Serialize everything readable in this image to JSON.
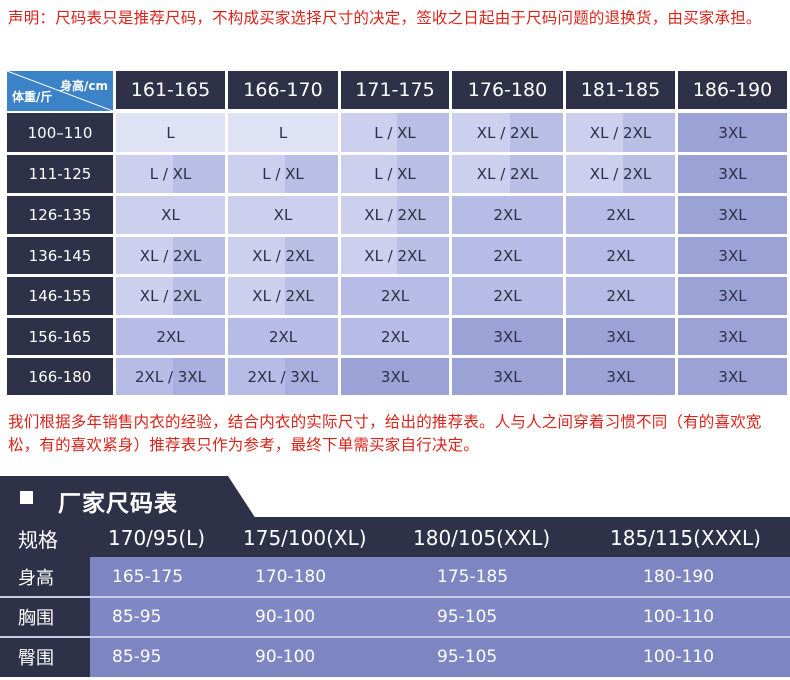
{
  "top_notice": "声明：尺码表只是推荐尺码，不构成买家选择尺寸的决定，签收之日起由于尺码问题的退换货，由买家承担。",
  "grid": {
    "corner_height_label": "身高/cm",
    "corner_weight_label": "体重/斤",
    "height_ranges": [
      "161-165",
      "166-170",
      "171-175",
      "176-180",
      "181-185",
      "186-190"
    ],
    "weight_ranges": [
      "100–110",
      "111-125",
      "126-135",
      "136-145",
      "146-155",
      "156-165",
      "166-180"
    ],
    "rows": [
      [
        "L",
        "L",
        "L / XL",
        "XL / 2XL",
        "XL / 2XL",
        "3XL"
      ],
      [
        "L / XL",
        "L / XL",
        "L / XL",
        "XL / 2XL",
        "XL / 2XL",
        "3XL"
      ],
      [
        "XL",
        "XL",
        "XL / 2XL",
        "2XL",
        "2XL",
        "3XL"
      ],
      [
        "XL / 2XL",
        "XL / 2XL",
        "XL / 2XL",
        "2XL",
        "2XL",
        "3XL"
      ],
      [
        "XL / 2XL",
        "XL / 2XL",
        "2XL",
        "2XL",
        "2XL",
        "3XL"
      ],
      [
        "2XL",
        "2XL",
        "2XL",
        "3XL",
        "3XL",
        "3XL"
      ],
      [
        "2XL / 3XL",
        "2XL / 3XL",
        "3XL",
        "3XL",
        "3XL",
        "3XL"
      ]
    ],
    "colors": {
      "header_bg": "#2e3148",
      "corner_bg": "#3c82c6",
      "L": "#dfe1f5",
      "XL": "#ccd0ee",
      "2XL": "#b6bce5",
      "3XL": "#9ba2d6"
    }
  },
  "mid_notice": "我们根据多年销售内衣的经验，结合内衣的实际尺寸，给出的推荐表。人与人之间穿着习惯不同（有的喜欢宽松，有的喜欢紧身）推荐表只作为参考，最终下单需买家自行决定。",
  "factory": {
    "title": "厂家尺码表",
    "spec_label": "规格",
    "specs": [
      "170/95(L)",
      "175/100(XL)",
      "180/105(XXL)",
      "185/115(XXXL)"
    ],
    "rows": [
      {
        "label": "身高",
        "values": [
          "165-175",
          "170-180",
          "175-185",
          "180-190"
        ]
      },
      {
        "label": "胸围",
        "values": [
          "85-95",
          "90-100",
          "95-105",
          "100-110"
        ]
      },
      {
        "label": "臀围",
        "values": [
          "85-95",
          "90-100",
          "95-105",
          "100-110"
        ]
      }
    ],
    "colors": {
      "row_bg": "#7d85c2",
      "title_bar": "#2e3148"
    }
  }
}
